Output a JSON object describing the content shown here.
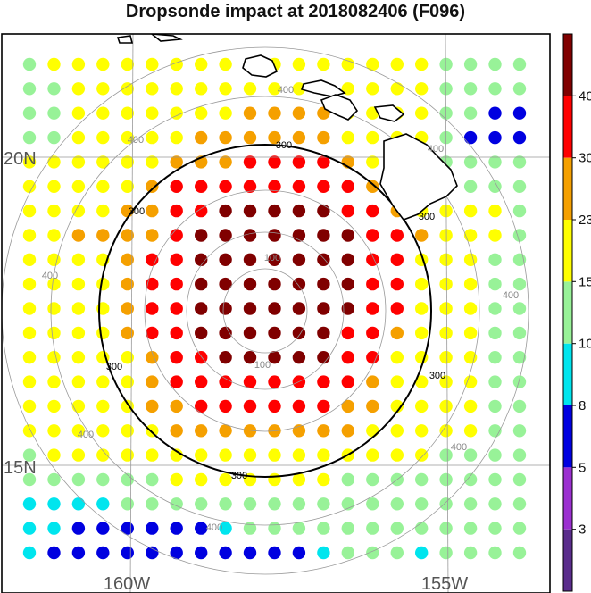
{
  "title": "Dropsonde impact at 2018082406 (F096)",
  "chart_data": {
    "type": "scatter",
    "title": "Dropsonde impact at 2018082406 (F096)",
    "grid_lines": true,
    "lat_labels": [
      "20N",
      "15N"
    ],
    "lon_labels": [
      "160W",
      "155W"
    ],
    "range_rings": [
      {
        "radius_km": 100,
        "labels": [
          "100",
          "100"
        ],
        "style": "gray"
      },
      {
        "radius_km": 300,
        "labels": [
          "300",
          "300",
          "300",
          "300",
          "300",
          "300"
        ],
        "style": "black"
      },
      {
        "radius_km": 400,
        "labels": [
          "400",
          "400",
          "400",
          "400",
          "400",
          "400",
          "400",
          "400"
        ],
        "style": "gray"
      }
    ],
    "colorbar": {
      "tick_labels": [
        "3",
        "5",
        "8",
        "10",
        "15",
        "23",
        "30",
        "40"
      ],
      "colors": [
        "#5a2d8c",
        "#9b30d0",
        "#0000e0",
        "#00e5ee",
        "#98f298",
        "#ffff00",
        "#f5a000",
        "#ff0000",
        "#800000"
      ]
    },
    "color_classes": [
      "3-5",
      "5-8",
      "8-10",
      "10-15",
      "15-23",
      "23-30",
      "30-40",
      ">40"
    ],
    "grid_values": [
      [
        3,
        4,
        4,
        4,
        4,
        4,
        4,
        4,
        4,
        4,
        4,
        4,
        4,
        4,
        4,
        4,
        4,
        3,
        3,
        3,
        3
      ],
      [
        3,
        3,
        4,
        4,
        4,
        4,
        4,
        4,
        4,
        4,
        4,
        4,
        4,
        4,
        4,
        4,
        4,
        3,
        3,
        3,
        3
      ],
      [
        3,
        3,
        4,
        4,
        4,
        4,
        4,
        4,
        4,
        5,
        5,
        5,
        5,
        4,
        4,
        4,
        4,
        3,
        3,
        1,
        1
      ],
      [
        3,
        3,
        4,
        4,
        4,
        4,
        4,
        5,
        5,
        5,
        5,
        5,
        5,
        4,
        4,
        4,
        4,
        3,
        1,
        1,
        1
      ],
      [
        4,
        4,
        4,
        4,
        4,
        4,
        5,
        5,
        5,
        6,
        6,
        6,
        6,
        5,
        4,
        4,
        4,
        3,
        3,
        3,
        3
      ],
      [
        4,
        4,
        4,
        4,
        4,
        5,
        6,
        6,
        6,
        6,
        6,
        6,
        6,
        6,
        5,
        4,
        4,
        3,
        3,
        3,
        3
      ],
      [
        4,
        4,
        4,
        4,
        5,
        5,
        6,
        6,
        7,
        7,
        7,
        7,
        7,
        6,
        6,
        5,
        4,
        4,
        4,
        4,
        3
      ],
      [
        4,
        4,
        5,
        5,
        5,
        5,
        6,
        7,
        7,
        7,
        7,
        7,
        7,
        7,
        6,
        6,
        5,
        4,
        4,
        4,
        3
      ],
      [
        4,
        4,
        4,
        4,
        5,
        6,
        6,
        7,
        7,
        7,
        7,
        7,
        7,
        7,
        6,
        6,
        4,
        4,
        4,
        3,
        3
      ],
      [
        4,
        4,
        4,
        4,
        5,
        6,
        6,
        7,
        7,
        7,
        7,
        7,
        7,
        7,
        6,
        6,
        4,
        4,
        4,
        3,
        3
      ],
      [
        4,
        4,
        4,
        4,
        5,
        6,
        6,
        7,
        7,
        7,
        7,
        7,
        7,
        7,
        6,
        6,
        4,
        4,
        4,
        3,
        3
      ],
      [
        4,
        4,
        4,
        4,
        5,
        6,
        6,
        7,
        7,
        7,
        7,
        7,
        7,
        6,
        6,
        5,
        4,
        4,
        4,
        3,
        3
      ],
      [
        4,
        4,
        4,
        4,
        4,
        5,
        6,
        6,
        7,
        7,
        7,
        7,
        7,
        6,
        6,
        4,
        4,
        4,
        4,
        3,
        3
      ],
      [
        4,
        4,
        4,
        4,
        4,
        5,
        6,
        6,
        6,
        6,
        6,
        6,
        6,
        6,
        5,
        4,
        4,
        4,
        4,
        3,
        3
      ],
      [
        4,
        4,
        4,
        4,
        4,
        5,
        5,
        6,
        6,
        6,
        6,
        6,
        6,
        5,
        5,
        4,
        4,
        4,
        4,
        3,
        3
      ],
      [
        4,
        4,
        4,
        4,
        4,
        4,
        5,
        5,
        5,
        5,
        5,
        5,
        5,
        5,
        4,
        4,
        4,
        4,
        4,
        3,
        3
      ],
      [
        3,
        4,
        4,
        4,
        4,
        4,
        4,
        4,
        4,
        4,
        4,
        4,
        4,
        4,
        4,
        4,
        4,
        3,
        3,
        3,
        3
      ],
      [
        3,
        3,
        3,
        3,
        3,
        3,
        4,
        4,
        4,
        4,
        4,
        4,
        4,
        3,
        3,
        3,
        3,
        3,
        3,
        3,
        3
      ],
      [
        2,
        2,
        2,
        2,
        3,
        3,
        3,
        3,
        3,
        3,
        3,
        3,
        3,
        3,
        3,
        3,
        3,
        3,
        3,
        3,
        3
      ],
      [
        2,
        2,
        1,
        1,
        1,
        1,
        1,
        1,
        2,
        3,
        3,
        3,
        3,
        3,
        3,
        3,
        3,
        3,
        3,
        3,
        3
      ],
      [
        2,
        1,
        1,
        1,
        1,
        1,
        1,
        1,
        1,
        1,
        1,
        1,
        2,
        3,
        3,
        3,
        2,
        3,
        3,
        3,
        3
      ]
    ]
  }
}
